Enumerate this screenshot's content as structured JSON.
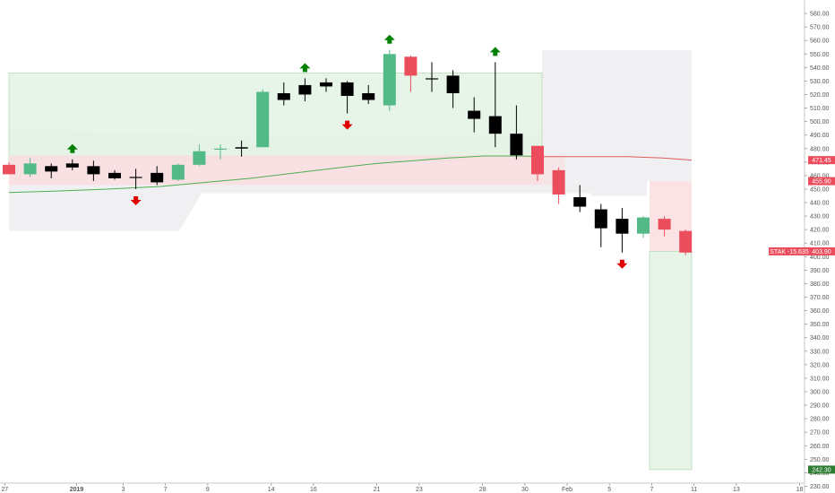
{
  "colors": {
    "up": "#53b987",
    "down": "#eb4d5c",
    "black": "#000000",
    "buy_arrow": "#008000",
    "sell_arrow": "#e00000",
    "green_zone": "#e3f2e4",
    "red_zone": "#f9dde0",
    "gray_zone": "#eeeef1",
    "ma_green": "#4caf50",
    "ma_red": "#e05c5c",
    "axis_text": "#555555"
  },
  "chart_data": {
    "type": "candlestick",
    "y_axis": {
      "min": 225,
      "max": 590,
      "ticks": [
        230,
        240,
        250,
        260,
        270,
        280,
        290,
        300,
        310,
        320,
        330,
        340,
        350,
        360,
        370,
        380,
        390,
        400,
        410,
        420,
        430,
        440,
        450,
        460,
        470,
        480,
        490,
        500,
        510,
        520,
        530,
        540,
        550,
        560,
        570,
        580
      ],
      "tick_labels": [
        "230.00",
        "240.00",
        "250.00",
        "260.00",
        "270.00",
        "280.00",
        "290.00",
        "300.00",
        "310.00",
        "320.00",
        "330.00",
        "340.00",
        "350.00",
        "360.00",
        "370.00",
        "380.00",
        "390.00",
        "400.00",
        "410.00",
        "420.00",
        "430.00",
        "440.00",
        "450.00",
        "460.00",
        "470.00",
        "480.00",
        "490.00",
        "500.00",
        "510.00",
        "520.00",
        "530.00",
        "540.00",
        "550.00",
        "560.00",
        "570.00",
        "580.00"
      ]
    },
    "x_axis": {
      "labels": [
        {
          "slot": -0.2,
          "text": "27",
          "bold": false
        },
        {
          "slot": 3.2,
          "text": "2019",
          "bold": true
        },
        {
          "slot": 5.4,
          "text": "3",
          "bold": false
        },
        {
          "slot": 7.4,
          "text": "7",
          "bold": false
        },
        {
          "slot": 9.4,
          "text": "9",
          "bold": false
        },
        {
          "slot": 12.4,
          "text": "14",
          "bold": false
        },
        {
          "slot": 14.4,
          "text": "16",
          "bold": false
        },
        {
          "slot": 17.4,
          "text": "21",
          "bold": false
        },
        {
          "slot": 19.4,
          "text": "23",
          "bold": false
        },
        {
          "slot": 22.4,
          "text": "28",
          "bold": false
        },
        {
          "slot": 24.4,
          "text": "30",
          "bold": false
        },
        {
          "slot": 26.4,
          "text": "Feb",
          "bold": false
        },
        {
          "slot": 28.4,
          "text": "5",
          "bold": false
        },
        {
          "slot": 30.4,
          "text": "7",
          "bold": false
        },
        {
          "slot": 32.4,
          "text": "11",
          "bold": false
        },
        {
          "slot": 34.4,
          "text": "13",
          "bold": false
        },
        {
          "slot": 37.4,
          "text": "18",
          "bold": false
        }
      ]
    },
    "candles": [
      {
        "o": 468,
        "h": 470,
        "l": 461,
        "c": 461,
        "color": "down"
      },
      {
        "o": 461,
        "h": 473,
        "l": 459,
        "c": 469,
        "color": "up"
      },
      {
        "o": 463,
        "h": 469,
        "l": 458,
        "c": 467,
        "color": "black"
      },
      {
        "o": 466,
        "h": 472,
        "l": 464,
        "c": 469,
        "color": "black"
      },
      {
        "o": 461,
        "h": 471,
        "l": 456,
        "c": 467,
        "color": "black"
      },
      {
        "o": 458,
        "h": 464,
        "l": 457,
        "c": 462,
        "color": "black"
      },
      {
        "o": 459,
        "h": 465,
        "l": 450,
        "c": 459,
        "color": "black"
      },
      {
        "o": 455,
        "h": 467,
        "l": 453,
        "c": 462,
        "color": "black"
      },
      {
        "o": 457,
        "h": 469,
        "l": 456,
        "c": 468,
        "color": "up"
      },
      {
        "o": 468,
        "h": 483,
        "l": 467,
        "c": 478,
        "color": "up"
      },
      {
        "o": 480,
        "h": 483,
        "l": 472,
        "c": 480,
        "color": "up"
      },
      {
        "o": 480,
        "h": 486,
        "l": 474,
        "c": 481,
        "color": "black"
      },
      {
        "o": 481,
        "h": 524,
        "l": 481,
        "c": 522,
        "color": "up"
      },
      {
        "o": 516,
        "h": 529,
        "l": 512,
        "c": 521,
        "color": "black"
      },
      {
        "o": 520,
        "h": 532,
        "l": 515,
        "c": 527,
        "color": "black"
      },
      {
        "o": 526,
        "h": 532,
        "l": 522,
        "c": 529,
        "color": "black"
      },
      {
        "o": 519,
        "h": 530,
        "l": 506,
        "c": 529,
        "color": "black"
      },
      {
        "o": 516,
        "h": 527,
        "l": 513,
        "c": 521,
        "color": "black"
      },
      {
        "o": 512,
        "h": 553,
        "l": 508,
        "c": 550,
        "color": "up"
      },
      {
        "o": 548,
        "h": 549,
        "l": 522,
        "c": 534,
        "color": "down"
      },
      {
        "o": 532,
        "h": 544,
        "l": 522,
        "c": 532,
        "color": "black"
      },
      {
        "o": 521,
        "h": 538,
        "l": 510,
        "c": 534,
        "color": "black"
      },
      {
        "o": 502,
        "h": 518,
        "l": 492,
        "c": 508,
        "color": "black"
      },
      {
        "o": 491,
        "h": 544,
        "l": 481,
        "c": 504,
        "color": "black"
      },
      {
        "o": 475,
        "h": 512,
        "l": 472,
        "c": 491,
        "color": "black"
      },
      {
        "o": 482,
        "h": 482,
        "l": 456,
        "c": 461,
        "color": "down"
      },
      {
        "o": 464,
        "h": 466,
        "l": 439,
        "c": 446,
        "color": "down"
      },
      {
        "o": 437,
        "h": 453,
        "l": 433,
        "c": 444,
        "color": "black"
      },
      {
        "o": 421,
        "h": 439,
        "l": 407,
        "c": 435,
        "color": "black"
      },
      {
        "o": 417,
        "h": 436,
        "l": 403,
        "c": 428,
        "color": "black"
      },
      {
        "o": 417,
        "h": 430,
        "l": 414,
        "c": 429,
        "color": "up"
      },
      {
        "o": 428,
        "h": 430,
        "l": 415,
        "c": 420,
        "color": "down"
      },
      {
        "o": 419,
        "h": 420,
        "l": 401,
        "c": 403,
        "color": "down"
      }
    ],
    "buy_arrows": [
      3,
      14,
      18,
      23
    ],
    "sell_arrows": [
      6,
      16,
      29
    ],
    "tags": [
      {
        "y": 471.45,
        "label": "471.45",
        "color": "#eb4d5c"
      },
      {
        "y": 455.9,
        "label": "455.90",
        "color": "#eb4d5c"
      },
      {
        "y": 403.9,
        "label": "403.90",
        "color": "#eb4d5c"
      },
      {
        "y": 242.3,
        "label": "242.30",
        "color": "#2e7d32"
      }
    ],
    "study_label": {
      "text": "STAK -15.635",
      "y": 403.9
    }
  }
}
